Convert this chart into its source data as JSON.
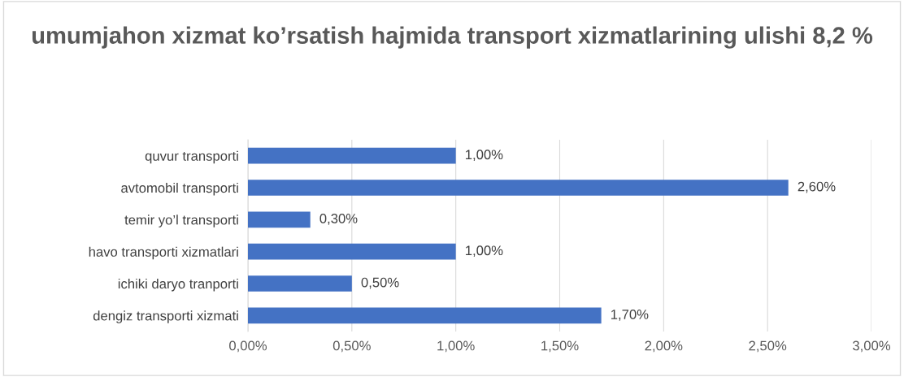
{
  "chart_data": {
    "type": "bar",
    "orientation": "horizontal",
    "title": "umumjahon xizmat ko’rsatish hajmida transport xizmatlarining ulishi 8,2 %",
    "categories": [
      "quvur transporti",
      "avtomobil transporti",
      "temir yo’l transporti",
      "havo transporti xizmatlari",
      "ichiki daryo tranporti",
      "dengiz transporti xizmati"
    ],
    "values": [
      1.0,
      2.6,
      0.3,
      1.0,
      0.5,
      1.7
    ],
    "value_labels": [
      "1,00%",
      "2,60%",
      "0,30%",
      "1,00%",
      "0,50%",
      "1,70%"
    ],
    "color": "#4472c4",
    "xlim": [
      0,
      3
    ],
    "xticks": [
      {
        "value": 0,
        "label": "0,00%"
      },
      {
        "value": 0.5,
        "label": "0,50%"
      },
      {
        "value": 1,
        "label": "1,00%"
      },
      {
        "value": 1.5,
        "label": "1,50%"
      },
      {
        "value": 2,
        "label": "2,00%"
      },
      {
        "value": 2.5,
        "label": "2,50%"
      },
      {
        "value": 3,
        "label": "3,00%"
      }
    ],
    "grid": "x"
  }
}
